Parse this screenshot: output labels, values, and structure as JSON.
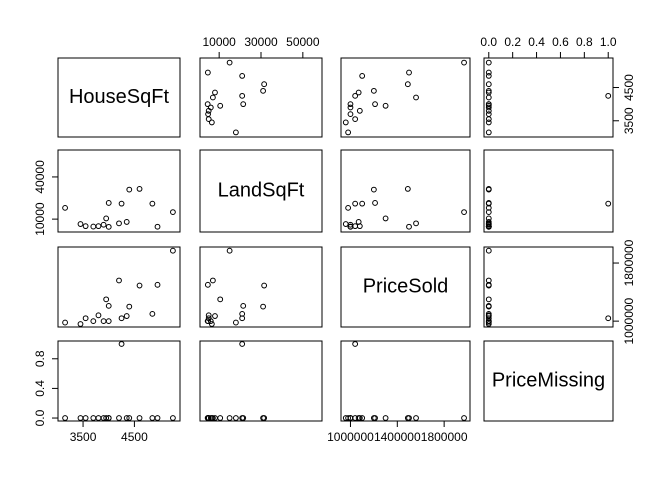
{
  "chart_data": {
    "type": "scatter",
    "kind": "scatterplot-matrix",
    "title": "",
    "variables": [
      "HouseSqFt",
      "LandSqFt",
      "PriceSold",
      "PriceMissing"
    ],
    "ranges": {
      "HouseSqFt": [
        3100,
        5300
      ],
      "LandSqFt": [
        3000,
        57000
      ],
      "PriceSold": [
        960000,
        1980000
      ],
      "PriceMissing": [
        0,
        1
      ]
    },
    "ticks": {
      "HouseSqFt": [
        3500,
        4500
      ],
      "LandSqFt": [
        10000,
        30000,
        50000
      ],
      "LandSqFt_left": [
        10000,
        40000
      ],
      "PriceSold": [
        1000000,
        1400000,
        1800000
      ],
      "PriceSold_right": [
        1000000,
        1800000
      ],
      "PriceMissing": [
        0.0,
        0.2,
        0.4,
        0.6,
        0.8,
        1.0
      ],
      "PriceMissing_left": [
        0.0,
        0.4,
        0.8
      ]
    },
    "tick_labels": {
      "HouseSqFt": [
        "3500",
        "4500"
      ],
      "LandSqFt_top": [
        "10000",
        "30000",
        "50000"
      ],
      "LandSqFt_left": [
        "10000",
        "40000"
      ],
      "PriceSold_bottom": [
        "1000000",
        "1400000",
        "1800000"
      ],
      "PriceSold_right": [
        "1000000",
        "1800000"
      ],
      "PriceMissing_top": [
        "0.0",
        "0.2",
        "0.4",
        "0.6",
        "0.8",
        "1.0"
      ],
      "PriceMissing_left": [
        "0.0",
        "0.4",
        "0.8"
      ]
    },
    "points": [
      {
        "HouseSqFt": 5250,
        "LandSqFt": 15000,
        "PriceSold": 1970000,
        "PriceMissing": 0
      },
      {
        "HouseSqFt": 4600,
        "LandSqFt": 31500,
        "PriceSold": 1490000,
        "PriceMissing": 0
      },
      {
        "HouseSqFt": 4350,
        "LandSqFt": 8000,
        "PriceSold": 1070000,
        "PriceMissing": 0
      },
      {
        "HouseSqFt": 3950,
        "LandSqFt": 10500,
        "PriceSold": 1300000,
        "PriceMissing": 0
      },
      {
        "HouseSqFt": 3900,
        "LandSqFt": 6000,
        "PriceSold": 1000000,
        "PriceMissing": 0
      },
      {
        "HouseSqFt": 3550,
        "LandSqFt": 5000,
        "PriceSold": 1040000,
        "PriceMissing": 0
      },
      {
        "HouseSqFt": 3700,
        "LandSqFt": 4700,
        "PriceSold": 1000000,
        "PriceMissing": 0
      },
      {
        "HouseSqFt": 3450,
        "LandSqFt": 6500,
        "PriceSold": 960000,
        "PriceMissing": 0
      },
      {
        "HouseSqFt": 3800,
        "LandSqFt": 5000,
        "PriceSold": 1080000,
        "PriceMissing": 0
      },
      {
        "HouseSqFt": 4200,
        "LandSqFt": 7000,
        "PriceSold": 1560000,
        "PriceMissing": 0
      },
      {
        "HouseSqFt": 4400,
        "LandSqFt": 31000,
        "PriceSold": 1200000,
        "PriceMissing": 0
      },
      {
        "HouseSqFt": 3150,
        "LandSqFt": 18000,
        "PriceSold": 980000,
        "PriceMissing": 0
      },
      {
        "HouseSqFt": 4950,
        "LandSqFt": 4600,
        "PriceSold": 1500000,
        "PriceMissing": 0
      },
      {
        "HouseSqFt": 4850,
        "LandSqFt": 21000,
        "PriceSold": 1100000,
        "PriceMissing": 0
      },
      {
        "HouseSqFt": 4000,
        "LandSqFt": 21500,
        "PriceSold": 1210000,
        "PriceMissing": 0
      },
      {
        "HouseSqFt": 4250,
        "LandSqFt": 21000,
        "PriceSold": 1040000,
        "PriceMissing": 1
      },
      {
        "HouseSqFt": 4000,
        "LandSqFt": 4500,
        "PriceSold": 1000000,
        "PriceMissing": 0
      }
    ],
    "grid": false,
    "legend": "none",
    "point_style": "open-circle"
  }
}
